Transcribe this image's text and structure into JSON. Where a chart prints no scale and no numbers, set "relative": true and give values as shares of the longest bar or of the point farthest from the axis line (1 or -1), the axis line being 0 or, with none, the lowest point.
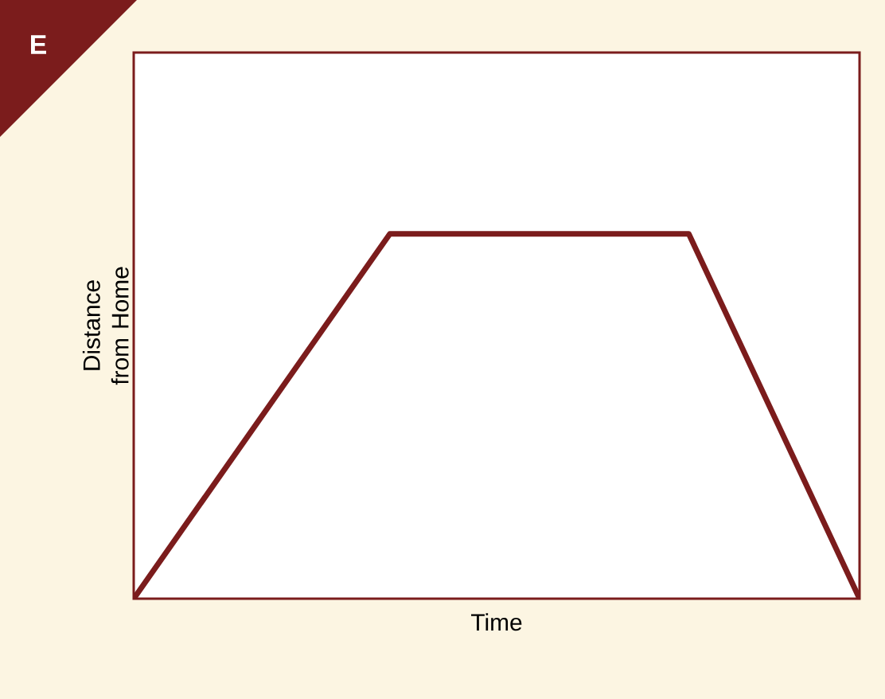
{
  "chart_data": {
    "type": "line",
    "xlabel": "Time",
    "ylabel": "Distance from Home",
    "annotations": [
      "E"
    ],
    "categories": [
      null,
      null,
      null,
      null,
      null,
      null,
      null,
      null,
      null,
      null,
      null,
      null,
      null,
      null,
      null,
      null,
      null,
      null
    ],
    "values": [
      0,
      null,
      null,
      null,
      null,
      null,
      1,
      null,
      null,
      null,
      null,
      null,
      null,
      1,
      null,
      null,
      null,
      0
    ],
    "relative": true,
    "color": "#7b1c1c",
    "marker": "none",
    "line_style": "solid"
  }
}
